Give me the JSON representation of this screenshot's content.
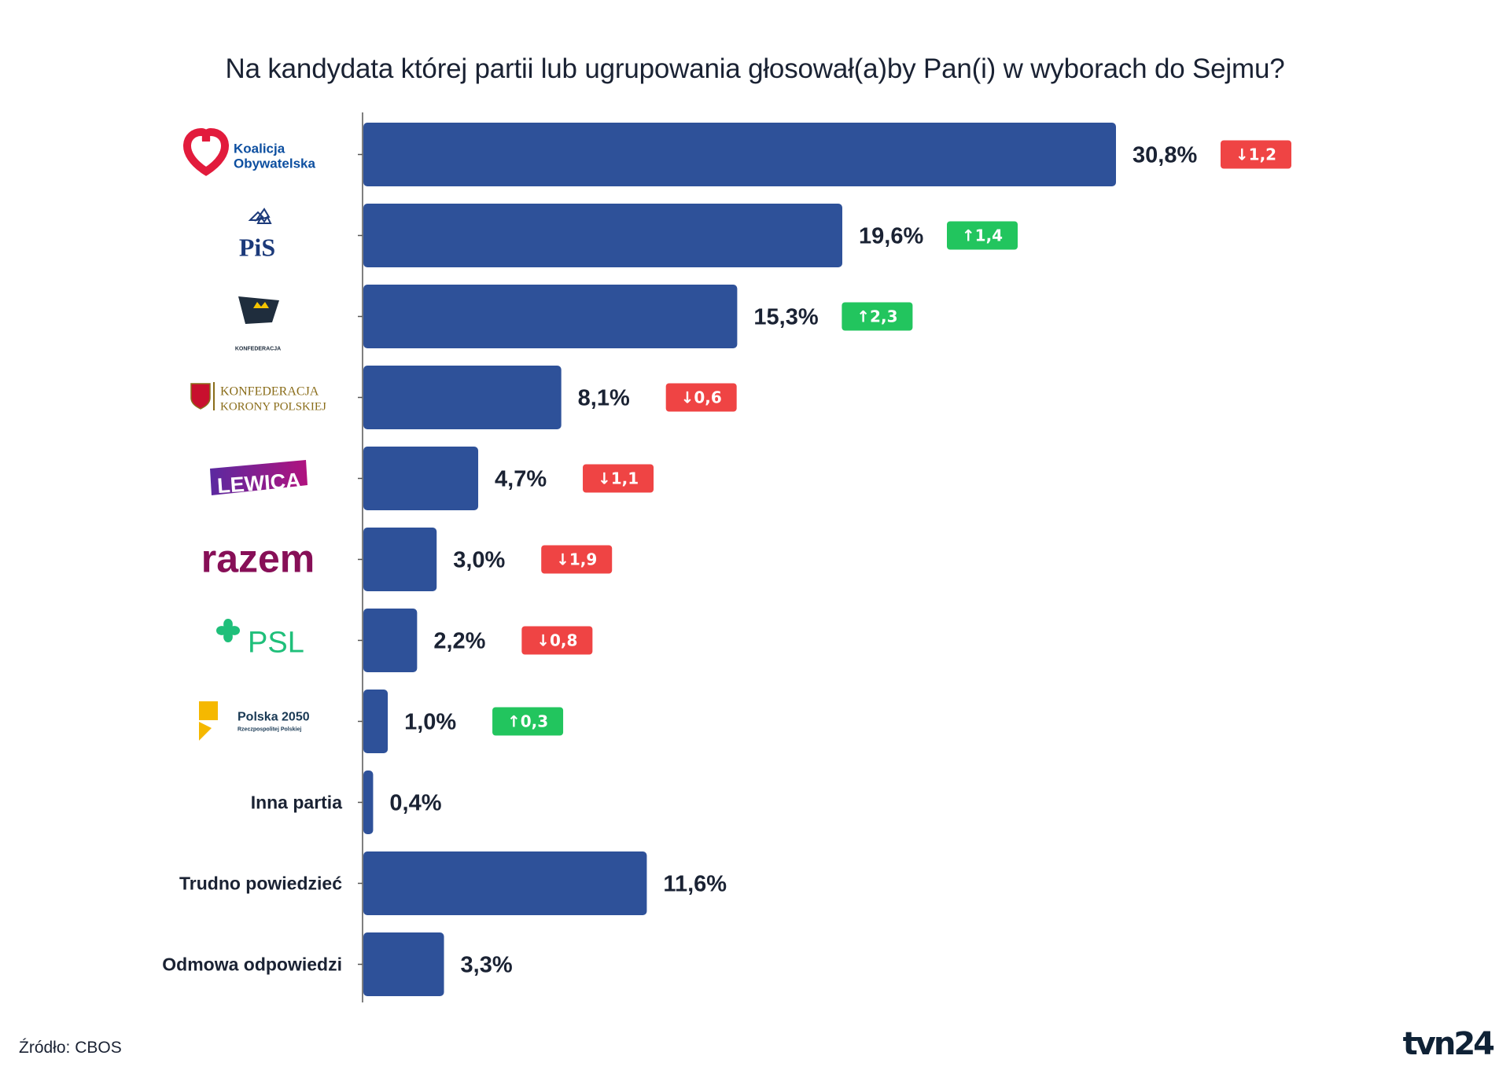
{
  "title": "Na kandydata której partii lub ugrupowania głosował(a)by Pan(i) w wyborach do Sejmu?",
  "source": "Źródło: CBOS",
  "brand": "tvn24",
  "colors": {
    "bar": "#2e5199",
    "up": "#22c55e",
    "down": "#ef4444",
    "axis": "#555555",
    "text": "#1a2233"
  },
  "chart_data": {
    "type": "bar",
    "orientation": "horizontal",
    "categories": [
      "Koalicja Obywatelska",
      "PiS",
      "Konfederacja",
      "Konfederacja Korony Polskiej",
      "Lewica",
      "razem",
      "PSL",
      "Polska 2050 Rzeczpospolitej Polskiej",
      "Inna partia",
      "Trudno powiedzieć",
      "Odmowa odpowiedzi"
    ],
    "category_display": [
      "logo",
      "logo",
      "logo",
      "logo",
      "logo",
      "logo",
      "logo",
      "logo",
      "text",
      "text",
      "text"
    ],
    "values": [
      30.8,
      19.6,
      15.3,
      8.1,
      4.7,
      3.0,
      2.2,
      1.0,
      0.4,
      11.6,
      3.3
    ],
    "value_labels": [
      "30,8%",
      "19,6%",
      "15,3%",
      "8,1%",
      "4,7%",
      "3,0%",
      "2,2%",
      "1,0%",
      "0,4%",
      "11,6%",
      "3,3%"
    ],
    "changes": [
      {
        "dir": "down",
        "label": "1,2"
      },
      {
        "dir": "up",
        "label": "1,4"
      },
      {
        "dir": "up",
        "label": "2,3"
      },
      {
        "dir": "down",
        "label": "0,6"
      },
      {
        "dir": "down",
        "label": "1,1"
      },
      {
        "dir": "down",
        "label": "1,9"
      },
      {
        "dir": "down",
        "label": "0,8"
      },
      {
        "dir": "up",
        "label": "0,3"
      },
      null,
      null,
      null
    ],
    "logo_text": {
      "ko_line1": "Koalicja",
      "ko_line2": "Obywatelska",
      "pis": "PiS",
      "konf": "KONFEDERACJA",
      "kkp_line1": "KONFEDERACJA",
      "kkp_line2": "KORONY POLSKIEJ",
      "lewica": "LEWICA",
      "razem": "razem",
      "psl": "PSL",
      "p2050_line1": "Polska 2050",
      "p2050_line2": "Rzeczpospolitej Polskiej"
    },
    "xlim": [
      0,
      32
    ],
    "grid": false,
    "legend": "none"
  }
}
